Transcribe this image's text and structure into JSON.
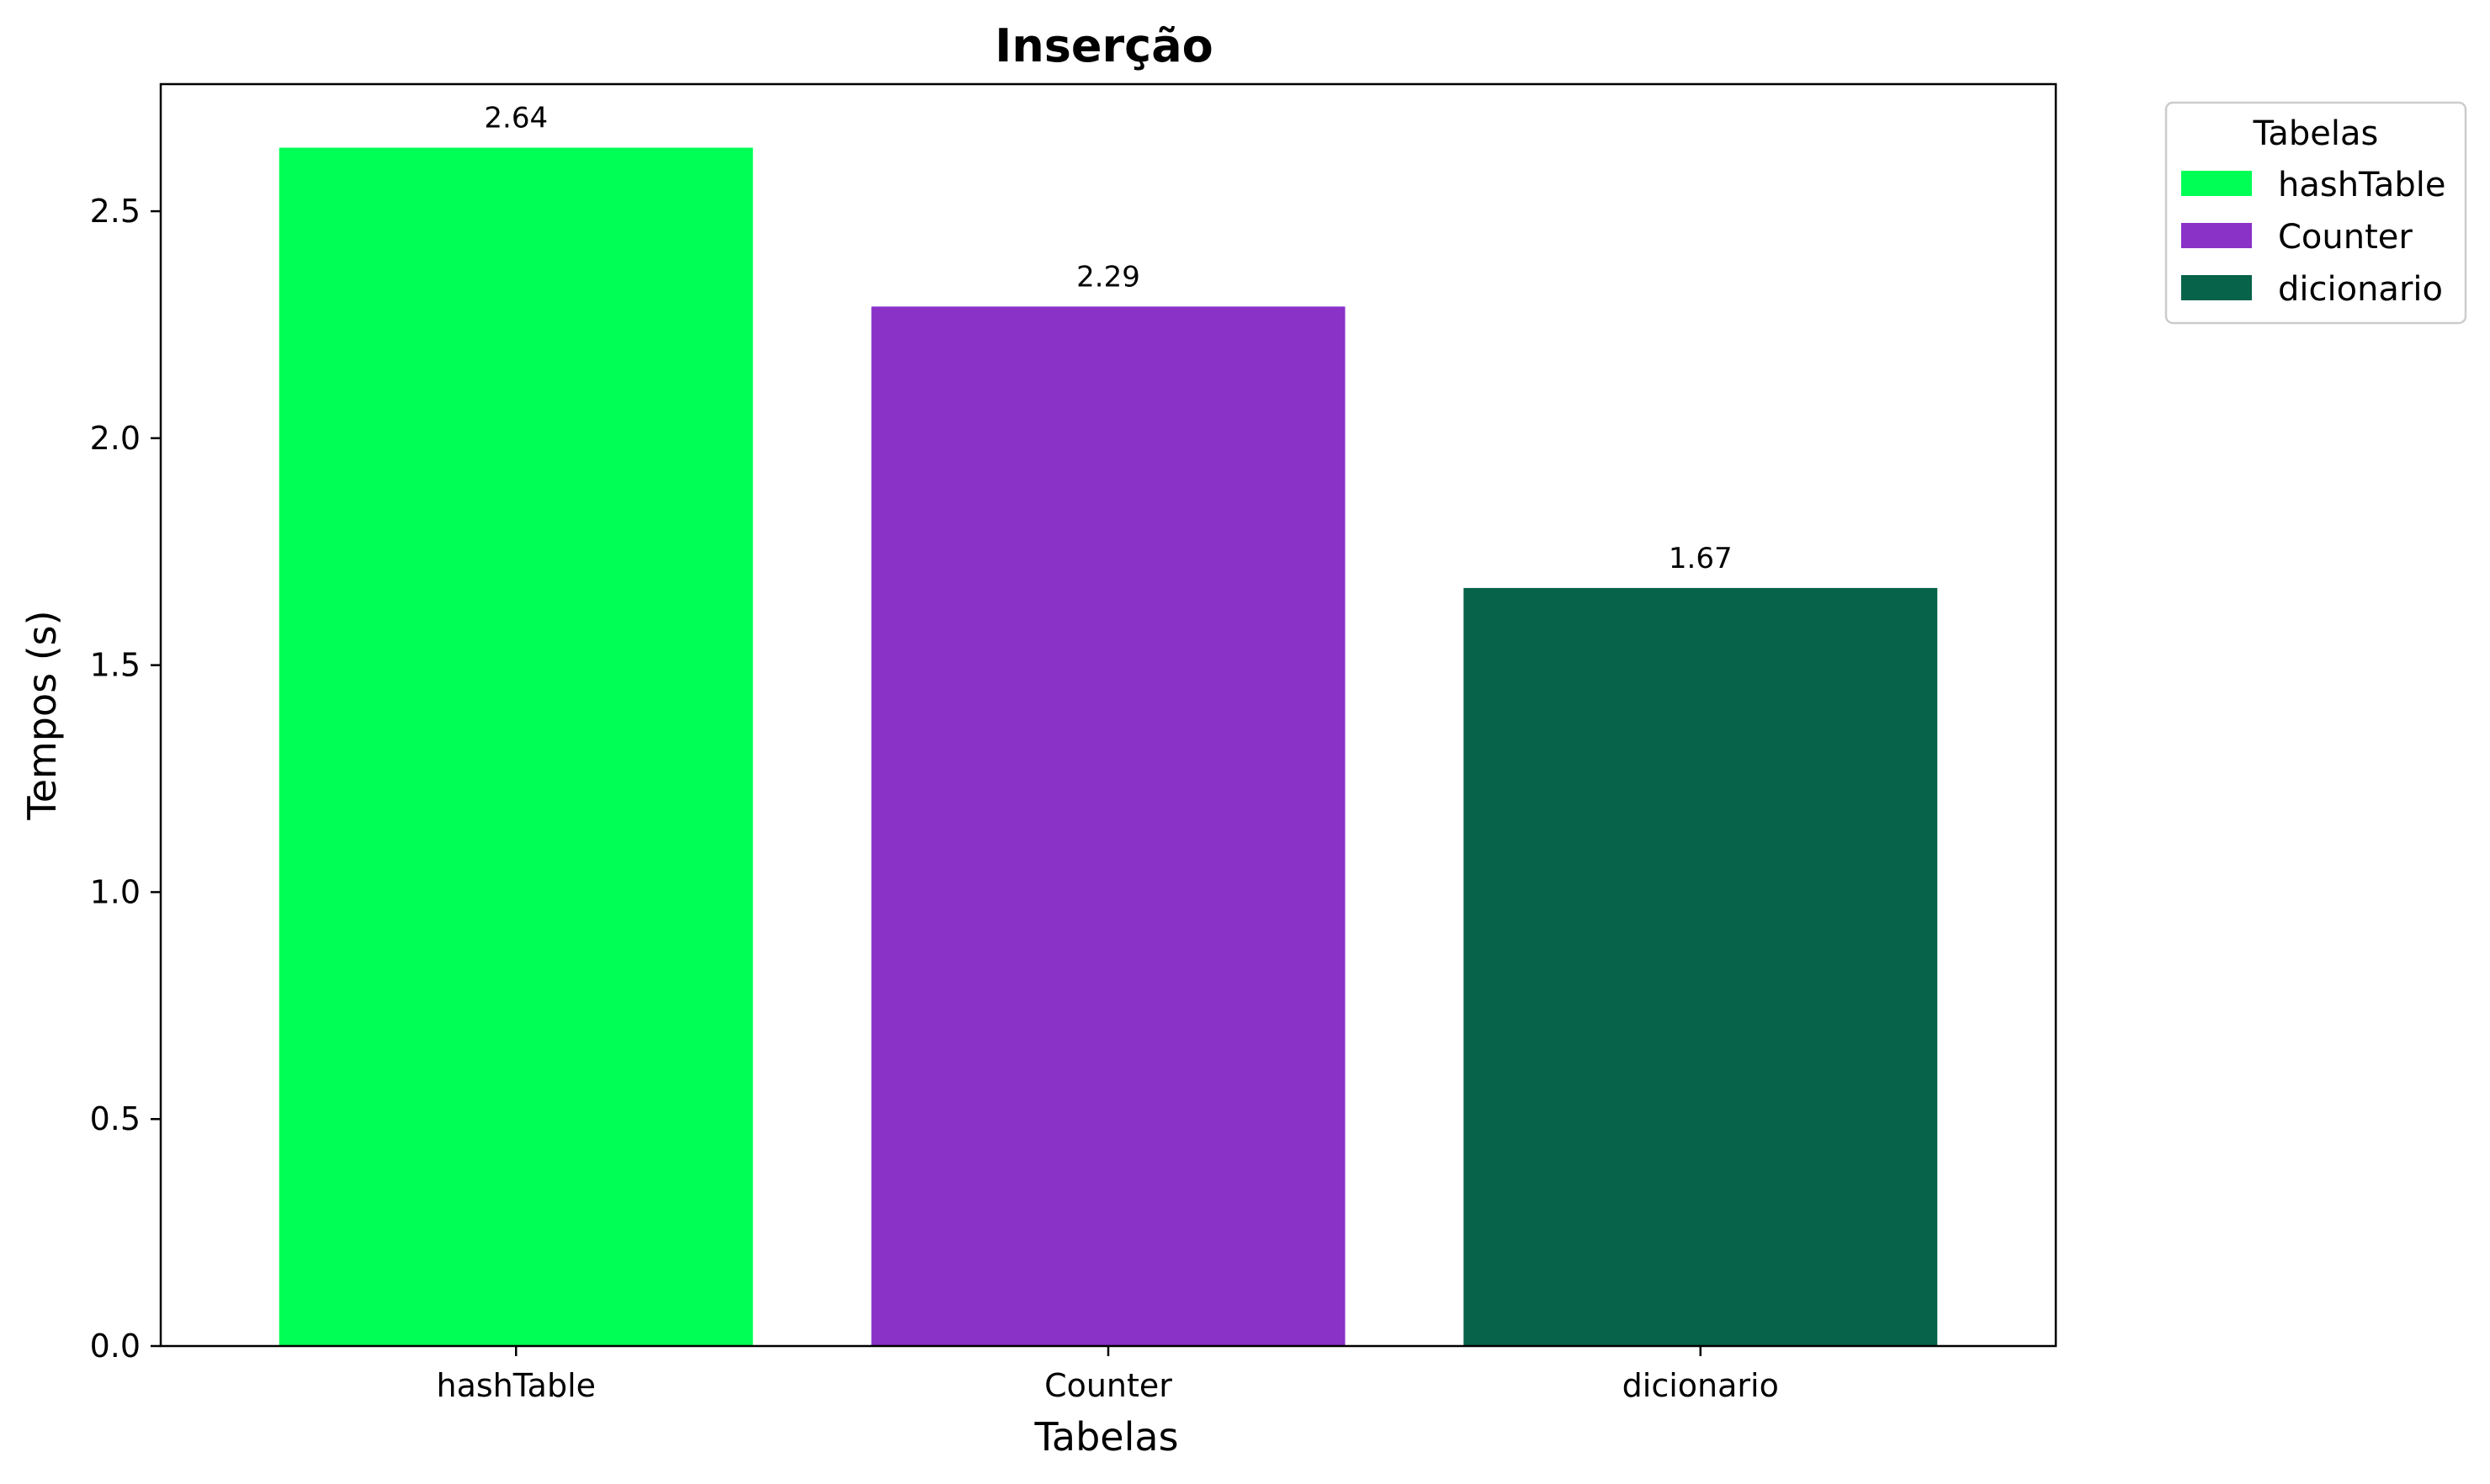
{
  "chart_data": {
    "type": "bar",
    "title": "Inserção",
    "xlabel": "Tabelas",
    "ylabel": "Tempos (s)",
    "categories": [
      "hashTable",
      "Counter",
      "dicionario"
    ],
    "values": [
      2.64,
      2.29,
      1.67
    ],
    "data_labels": [
      "2.64",
      "2.29",
      "1.67"
    ],
    "colors": [
      "#00ff55",
      "#8a31c8",
      "#07634a"
    ],
    "ylim": [
      0,
      2.78
    ],
    "yticks": [
      0.0,
      0.5,
      1.0,
      1.5,
      2.0,
      2.5
    ],
    "ytick_labels": [
      "0.0",
      "0.5",
      "1.0",
      "1.5",
      "2.0",
      "2.5"
    ],
    "grid": false,
    "legend": {
      "title": "Tabelas",
      "placement": "outside-top-right",
      "entries": [
        "hashTable",
        "Counter",
        "dicionario"
      ]
    }
  }
}
